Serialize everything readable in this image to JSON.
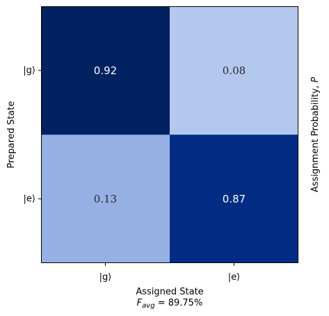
{
  "chart_data": {
    "type": "heatmap",
    "x_categories": [
      "|g⟩",
      "|e⟩"
    ],
    "y_categories": [
      "|g⟩",
      "|e⟩"
    ],
    "values": [
      [
        0.92,
        0.08
      ],
      [
        0.13,
        0.87
      ]
    ],
    "value_labels": [
      [
        "0.92",
        "0.08"
      ],
      [
        "0.13",
        "0.87"
      ]
    ],
    "xlabel": "Assigned State",
    "ylabel": "Prepared State",
    "right_label": "Assignment Probability, P",
    "fidelity": {
      "symbol": "F",
      "subscript": "avg",
      "equals": " = ",
      "value": "89.75%"
    },
    "colors": {
      "cell_colors": [
        [
          "#012161",
          "#b4c8ef"
        ],
        [
          "#97b0e4",
          "#022c84"
        ]
      ],
      "label_colors": [
        [
          "#ffffff",
          "#262626"
        ],
        [
          "#262626",
          "#ffffff"
        ]
      ]
    }
  }
}
